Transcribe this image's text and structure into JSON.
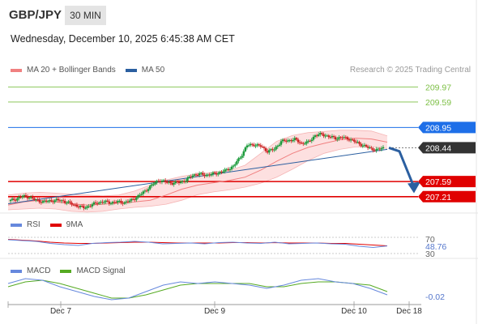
{
  "header": {
    "symbol": "GBP/JPY",
    "interval": "30 MIN",
    "datetime": "Wednesday, December 10, 2025 6:45:38 AM CET"
  },
  "legends": {
    "main": [
      {
        "label": "MA 20 + Bollinger Bands",
        "color": "#f08080"
      },
      {
        "label": "MA 50",
        "color": "#2b5fa0"
      }
    ],
    "rsi": [
      {
        "label": "RSI",
        "color": "#6688dd"
      },
      {
        "label": "9MA",
        "color": "#e00000"
      }
    ],
    "macd": [
      {
        "label": "MACD",
        "color": "#6688dd"
      },
      {
        "label": "MACD Signal",
        "color": "#55aa22"
      }
    ]
  },
  "credit": "Research © 2025 Trading Central",
  "colors": {
    "up_candle": "#1a9a3a",
    "down_candle": "#cc2222",
    "resistance": "#1e6fe8",
    "support": "#e00000",
    "target": "#7cbf44",
    "current": "#333333",
    "arrow": "#2b5fa0",
    "band_fill": "#fde0e0"
  },
  "chart_data": [
    {
      "type": "candlestick",
      "title": "GBP/JPY 30 MIN",
      "x_ticks": [
        "Dec 7",
        "Dec 9",
        "Dec 10",
        "Dec 18"
      ],
      "ylim": [
        206.9,
        210.2
      ],
      "levels": [
        {
          "value": 209.97,
          "label": "209.97",
          "role": "target"
        },
        {
          "value": 209.59,
          "label": "209.59",
          "role": "target"
        },
        {
          "value": 208.95,
          "label": "208.95",
          "role": "resistance"
        },
        {
          "value": 208.44,
          "label": "208.44",
          "role": "current"
        },
        {
          "value": 207.59,
          "label": "207.59",
          "role": "support"
        },
        {
          "value": 207.21,
          "label": "207.21",
          "role": "support"
        }
      ],
      "price_path": [
        207.1,
        207.15,
        207.22,
        207.2,
        207.12,
        207.08,
        207.1,
        207.12,
        207.1,
        207.04,
        206.98,
        206.93,
        206.99,
        207.06,
        207.08,
        207.06,
        207.08,
        207.06,
        207.12,
        207.22,
        207.35,
        207.5,
        207.62,
        207.58,
        207.55,
        207.57,
        207.62,
        207.75,
        207.78,
        207.75,
        207.78,
        207.82,
        207.88,
        207.98,
        208.2,
        208.5,
        208.52,
        208.48,
        208.35,
        208.4,
        208.6,
        208.62,
        208.65,
        208.55,
        208.58,
        208.75,
        208.78,
        208.72,
        208.68,
        208.7,
        208.66,
        208.58,
        208.5,
        208.43,
        208.38,
        208.44
      ],
      "ma20": [
        207.0,
        207.08,
        207.12,
        207.08,
        207.03,
        207.0,
        207.02,
        207.05,
        207.08,
        207.12,
        207.25,
        207.4,
        207.5,
        207.56,
        207.62,
        207.7,
        207.88,
        208.1,
        208.3,
        208.45,
        208.55,
        208.64,
        208.68,
        208.66,
        208.58
      ],
      "bb_upper": [
        207.25,
        207.3,
        207.32,
        207.3,
        207.27,
        207.25,
        207.23,
        207.25,
        207.35,
        207.5,
        207.63,
        207.72,
        207.78,
        207.82,
        207.87,
        208.0,
        208.3,
        208.6,
        208.75,
        208.82,
        208.85,
        208.88,
        208.88,
        208.86,
        208.74
      ],
      "bb_lower": [
        206.88,
        206.9,
        206.92,
        206.9,
        206.84,
        206.82,
        206.84,
        206.9,
        206.94,
        206.97,
        207.02,
        207.12,
        207.26,
        207.33,
        207.38,
        207.45,
        207.55,
        207.7,
        207.9,
        208.12,
        208.3,
        208.4,
        208.46,
        208.46,
        208.42
      ],
      "ma50_start": 207.03,
      "ma50_end": 208.4,
      "forecast_path": [
        208.44,
        208.35,
        207.5
      ]
    },
    {
      "type": "line",
      "title": "RSI",
      "ylim": [
        30,
        70
      ],
      "y_ticks": [
        "70",
        "30"
      ],
      "last_value": "48.76",
      "series": [
        {
          "name": "RSI",
          "values": [
            64,
            62,
            60,
            55,
            52,
            50,
            55,
            57,
            58,
            60,
            58,
            54,
            55,
            56,
            54,
            57,
            58,
            56,
            55,
            58,
            54,
            55,
            56,
            54,
            53,
            48,
            45,
            48.76
          ]
        },
        {
          "name": "9MA",
          "values": [
            65,
            63,
            61,
            58,
            56,
            55,
            55,
            56,
            57,
            58,
            58,
            57,
            56,
            56,
            56,
            56,
            57,
            57,
            56,
            57,
            56,
            56,
            56,
            55,
            55,
            53,
            51,
            49
          ]
        }
      ]
    },
    {
      "type": "line",
      "title": "MACD",
      "last_value": "-0.02",
      "series": [
        {
          "name": "MACD",
          "values": [
            0.05,
            0.08,
            0.07,
            0.03,
            0.0,
            -0.03,
            -0.05,
            -0.04,
            0.0,
            0.04,
            0.06,
            0.05,
            0.06,
            0.05,
            0.04,
            0.02,
            0.04,
            0.07,
            0.08,
            0.06,
            0.05,
            0.02,
            -0.02
          ]
        },
        {
          "name": "MACD Signal",
          "values": [
            0.03,
            0.06,
            0.07,
            0.05,
            0.02,
            -0.01,
            -0.04,
            -0.04,
            -0.02,
            0.01,
            0.04,
            0.05,
            0.05,
            0.05,
            0.05,
            0.03,
            0.03,
            0.05,
            0.06,
            0.06,
            0.05,
            0.04,
            0.0
          ]
        }
      ]
    }
  ]
}
